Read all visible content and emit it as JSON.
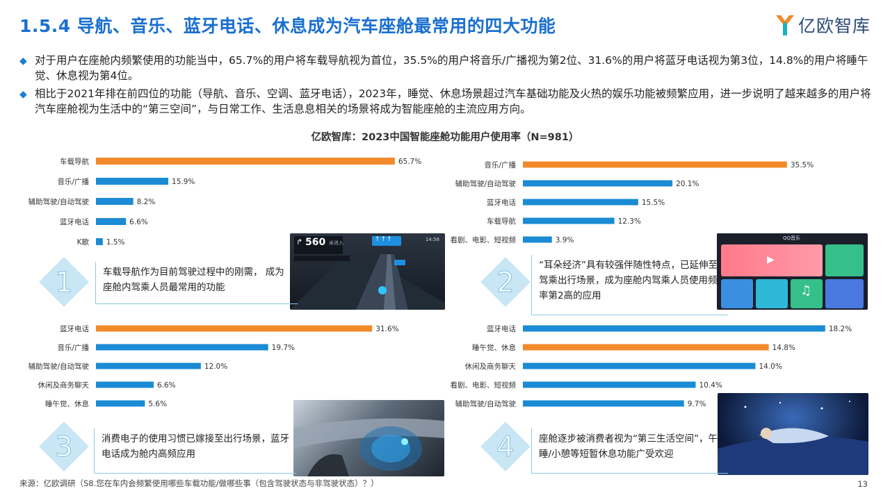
{
  "header": {
    "title": "1.5.4 导航、音乐、蓝牙电话、休息成为汽车座舱最常用的四大功能",
    "logo_text": "亿欧智库",
    "logo_icon": "yiou-logo-icon"
  },
  "bullets": [
    "对于用户在座舱内频繁使用的功能当中，65.7%的用户将车载导航视为首位，35.5%的用户将音乐/广播视为第2位、31.6%的用户将蓝牙电话视为第3位，14.8%的用户将睡午觉、休息视为第4位。",
    "相比于2021年排在前四位的功能（导航、音乐、空调、蓝牙电话），2023年，睡觉、休息场景超过汽车基础功能及火热的娱乐功能被频繁应用，进一步说明了越来越多的用户将汽车座舱视为生活中的“第三空间”，与日常工作、生活息息相关的场景将成为智能座舱的主流应用方向。"
  ],
  "chart_title": "亿欧智库：2023中国智能座舱功能用户使用率（N=981）",
  "colors": {
    "highlight": "#f28a2a",
    "bar": "#1a8bd4",
    "accent": "#1a6fd0",
    "diamond": "#c9e6f5"
  },
  "chart_data": [
    {
      "type": "bar",
      "orientation": "horizontal",
      "categories": [
        "车载导航",
        "音乐/广播",
        "辅助驾驶/自动驾驶",
        "蓝牙电话",
        "K歌"
      ],
      "values": [
        65.7,
        15.9,
        8.2,
        6.6,
        1.5
      ],
      "value_labels": [
        "65.7%",
        "15.9%",
        "8.2%",
        "6.6%",
        "1.5%"
      ],
      "highlight_index": 0,
      "xlim": [
        0,
        70
      ]
    },
    {
      "type": "bar",
      "orientation": "horizontal",
      "categories": [
        "音乐/广播",
        "辅助驾驶/自动驾驶",
        "蓝牙电话",
        "车载导航",
        "看剧、电影、短视频"
      ],
      "values": [
        35.5,
        20.1,
        15.5,
        12.3,
        3.9
      ],
      "value_labels": [
        "35.5%",
        "20.1%",
        "15.5%",
        "12.3%",
        "3.9%"
      ],
      "highlight_index": 0,
      "xlim": [
        0,
        40
      ]
    },
    {
      "type": "bar",
      "orientation": "horizontal",
      "categories": [
        "蓝牙电话",
        "音乐/广播",
        "辅助驾驶/自动驾驶",
        "休闲及商务聊天",
        "睡午觉、休息"
      ],
      "values": [
        31.6,
        19.7,
        12.0,
        6.6,
        5.6
      ],
      "value_labels": [
        "31.6%",
        "19.7%",
        "12.0%",
        "6.6%",
        "5.6%"
      ],
      "highlight_index": 0,
      "xlim": [
        0,
        35
      ]
    },
    {
      "type": "bar",
      "orientation": "horizontal",
      "categories": [
        "蓝牙电话",
        "睡午觉、休息",
        "休闲及商务聊天",
        "看剧、电影、短视频",
        "辅助驾驶/自动驾驶"
      ],
      "values": [
        18.2,
        14.8,
        14.0,
        10.4,
        9.7
      ],
      "value_labels": [
        "18.2%",
        "14.8%",
        "14.0%",
        "10.4%",
        "9.7%"
      ],
      "highlight_index": 1,
      "xlim": [
        0,
        18.5
      ]
    }
  ],
  "callouts": [
    {
      "number": "1",
      "text": "车载导航作为目前驾驶过程中的刚需， 成为座舱内驾乘人员最常用的功能"
    },
    {
      "number": "2",
      "text": "“耳朵经济”具有较强伴随性特点，已延伸至驾乘出行场景，成为座舱内驾乘人员使用频率第2高的应用"
    },
    {
      "number": "3",
      "text": "消费电子的使用习惯已嫁接至出行场景，蓝牙电话成为舱内高频应用"
    },
    {
      "number": "4",
      "text": "座舱逐步被消费者视为“第三生活空间”，午睡/小憩等短暂休息功能广受欢迎"
    }
  ],
  "nav_screen": {
    "distance": "560",
    "unit": "米进入",
    "clock": "14:58"
  },
  "music_screen": {
    "app_title": "QQ音乐"
  },
  "footer": {
    "source": "来源：亿欧调研（S8.您在车内会频繁使用哪些车载功能/做哪些事（包含驾驶状态与非驾驶状态）？）",
    "page_number": "13"
  }
}
